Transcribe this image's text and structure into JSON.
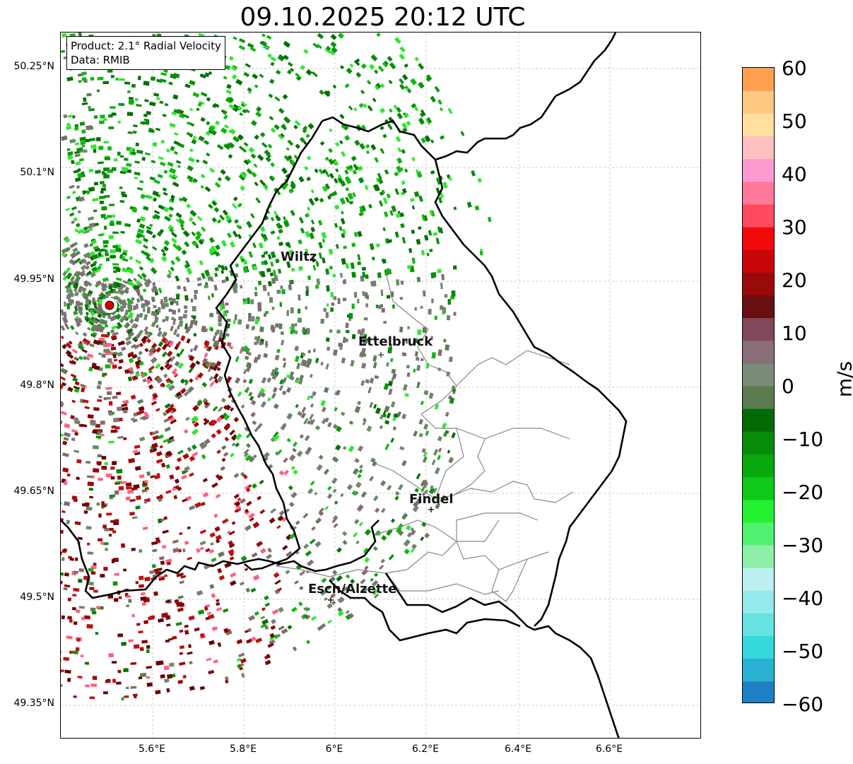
{
  "title": "09.10.2025 20:12 UTC",
  "info": {
    "product": "Product: 2.1° Radial Velocity",
    "source": "Data: RMIB"
  },
  "axes": {
    "lat_ticks": [
      "50.25°N",
      "50.1°N",
      "49.95°N",
      "49.8°N",
      "49.65°N",
      "49.5°N",
      "49.35°N"
    ],
    "lon_ticks": [
      "5.6°E",
      "5.8°E",
      "6°E",
      "6.2°E",
      "6.4°E",
      "6.6°E"
    ]
  },
  "colorbar": {
    "label": "m/s",
    "ticks": [
      "60",
      "50",
      "40",
      "30",
      "20",
      "10",
      "0",
      "−10",
      "−20",
      "−30",
      "−40",
      "−50",
      "−60"
    ],
    "min": -60,
    "max": 60,
    "colors": [
      "#1f7fc4",
      "#2ab0d0",
      "#35d8dc",
      "#66e2e2",
      "#96e9ea",
      "#bdeff0",
      "#8ef0a8",
      "#50f070",
      "#22f030",
      "#10c818",
      "#08a80e",
      "#068c0a",
      "#046a06",
      "#5a7a50",
      "#7b8b78",
      "#8a6f78",
      "#804858",
      "#6a0f10",
      "#9a0a0a",
      "#c80808",
      "#f20a0a",
      "#ff4a60",
      "#ff7a9a",
      "#ff9ad0",
      "#ffc0c0",
      "#ffe0a0",
      "#ffc880",
      "#ffa050"
    ]
  },
  "cities": [
    {
      "name": "Wiltz"
    },
    {
      "name": "Ettelbruck"
    },
    {
      "name": "Findel"
    },
    {
      "name": "Esch/Alzette"
    }
  ],
  "radar": {
    "name": "radar-site"
  }
}
